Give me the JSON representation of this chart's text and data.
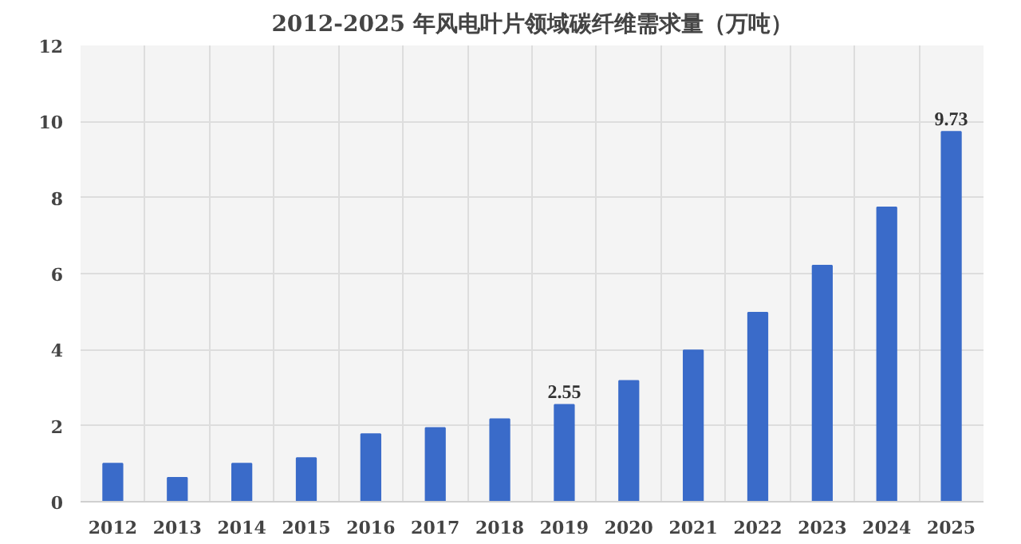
{
  "chart_data": {
    "type": "bar",
    "title": "2012-2025 年风电叶片领域碳纤维需求量（万吨）",
    "categories": [
      "2012",
      "2013",
      "2014",
      "2015",
      "2016",
      "2017",
      "2018",
      "2019",
      "2020",
      "2021",
      "2022",
      "2023",
      "2024",
      "2025"
    ],
    "values": [
      1.0,
      0.63,
      1.0,
      1.15,
      1.78,
      1.94,
      2.17,
      2.55,
      3.18,
      3.98,
      4.97,
      6.21,
      7.74,
      9.73
    ],
    "value_labels": [
      null,
      null,
      null,
      null,
      null,
      null,
      null,
      "2.55",
      null,
      null,
      null,
      null,
      null,
      "9.73"
    ],
    "color": "#3a6bc9",
    "ylim": [
      0,
      12
    ],
    "yticks": [
      0,
      2,
      4,
      6,
      8,
      10,
      12
    ],
    "grid": true
  }
}
